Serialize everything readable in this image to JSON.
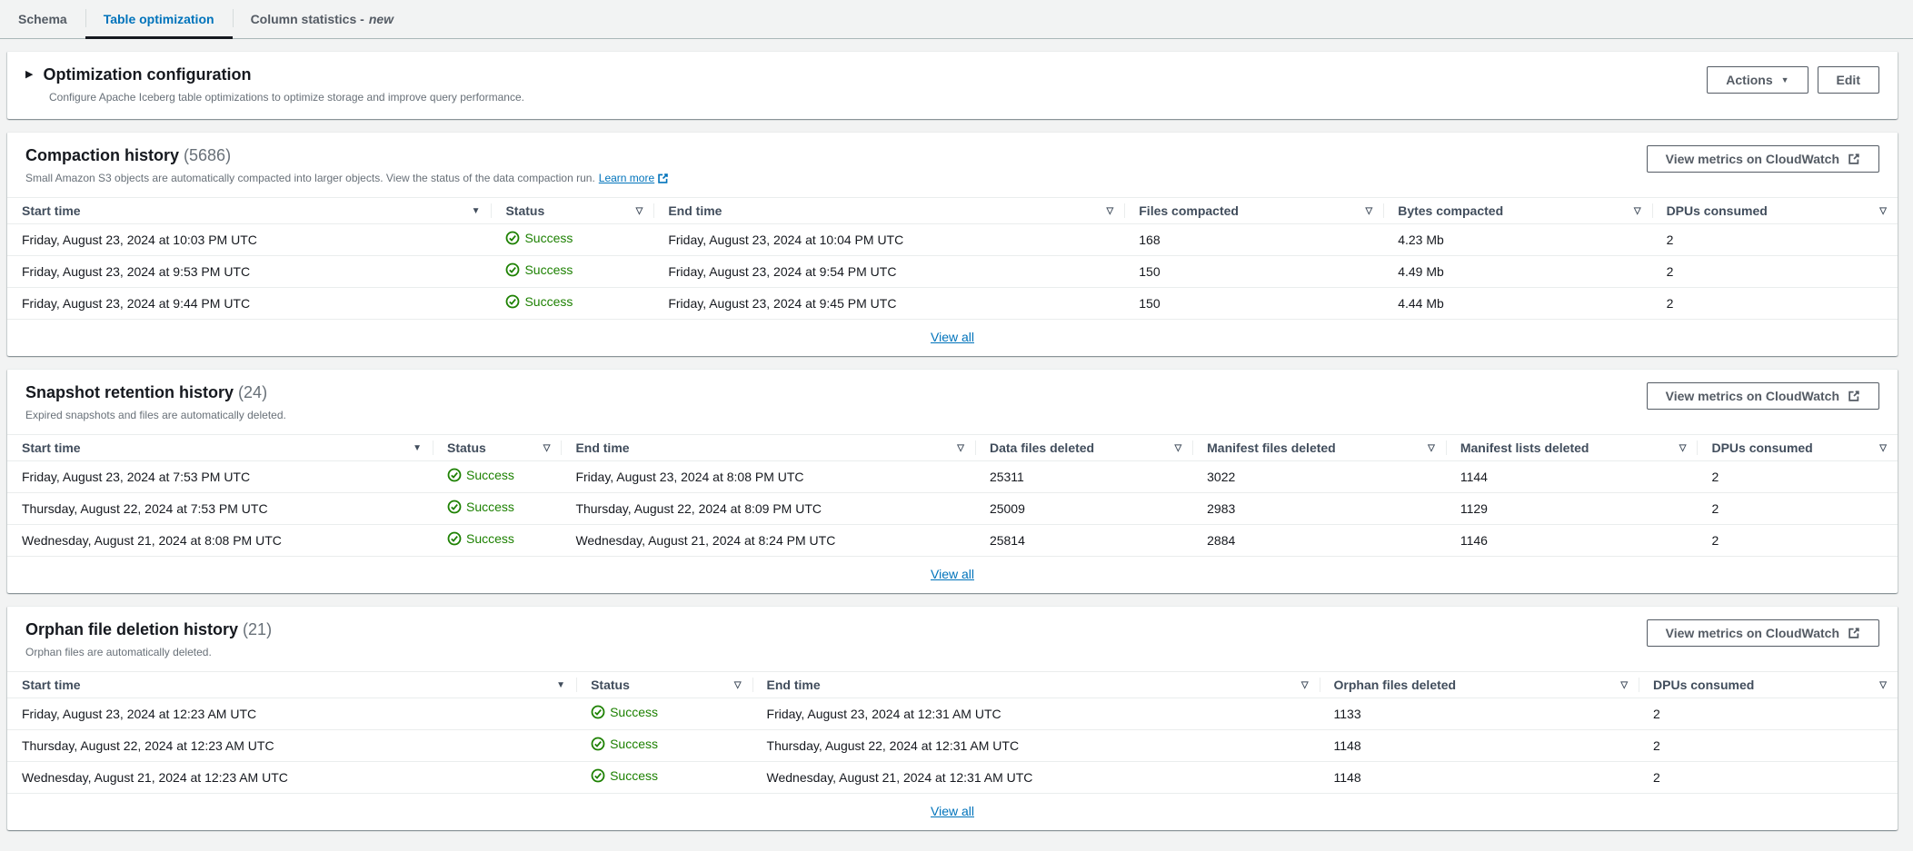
{
  "tabs": [
    {
      "label": "Schema",
      "active": false
    },
    {
      "label": "Table optimization",
      "active": true
    },
    {
      "label": "Column statistics -",
      "badge": "new",
      "active": false
    }
  ],
  "config": {
    "title": "Optimization configuration",
    "description": "Configure Apache Iceberg table optimizations to optimize storage and improve query performance.",
    "actions_label": "Actions",
    "edit_label": "Edit"
  },
  "icons": {
    "expand": "caret-right-icon",
    "actions_caret": "caret-down-icon",
    "sort_desc_glyph": "▼",
    "sortable_glyph": "▽",
    "success": "status-success-icon",
    "external_link": "external-link-icon"
  },
  "colors": {
    "accent_blue": "#0073bb",
    "success_green": "#1d8102",
    "active_tab_underline": "#16191f"
  },
  "sections": [
    {
      "title": "Compaction history",
      "count": "(5686)",
      "description": "Small Amazon S3 objects are automatically compacted into larger objects. View the status of the data compaction run.",
      "learn_more_label": "Learn more",
      "metrics_button": "View metrics on CloudWatch",
      "view_all_label": "View all",
      "columns": [
        {
          "label": "Start time",
          "sort": "desc"
        },
        {
          "label": "Status",
          "type": "status"
        },
        {
          "label": "End time"
        },
        {
          "label": "Files compacted"
        },
        {
          "label": "Bytes compacted"
        },
        {
          "label": "DPUs consumed"
        }
      ],
      "rows": [
        [
          "Friday, August 23, 2024 at 10:03 PM UTC",
          "Success",
          "Friday, August 23, 2024 at 10:04 PM UTC",
          "168",
          "4.23 Mb",
          "2"
        ],
        [
          "Friday, August 23, 2024 at 9:53 PM UTC",
          "Success",
          "Friday, August 23, 2024 at 9:54 PM UTC",
          "150",
          "4.49 Mb",
          "2"
        ],
        [
          "Friday, August 23, 2024 at 9:44 PM UTC",
          "Success",
          "Friday, August 23, 2024 at 9:45 PM UTC",
          "150",
          "4.44 Mb",
          "2"
        ]
      ]
    },
    {
      "title": "Snapshot retention history",
      "count": "(24)",
      "description": "Expired snapshots and files are automatically deleted.",
      "metrics_button": "View metrics on CloudWatch",
      "view_all_label": "View all",
      "columns": [
        {
          "label": "Start time",
          "sort": "desc"
        },
        {
          "label": "Status",
          "type": "status"
        },
        {
          "label": "End time"
        },
        {
          "label": "Data files deleted"
        },
        {
          "label": "Manifest files deleted"
        },
        {
          "label": "Manifest lists deleted"
        },
        {
          "label": "DPUs consumed"
        }
      ],
      "rows": [
        [
          "Friday, August 23, 2024 at 7:53 PM UTC",
          "Success",
          "Friday, August 23, 2024 at 8:08 PM UTC",
          "25311",
          "3022",
          "1144",
          "2"
        ],
        [
          "Thursday, August 22, 2024 at 7:53 PM UTC",
          "Success",
          "Thursday, August 22, 2024 at 8:09 PM UTC",
          "25009",
          "2983",
          "1129",
          "2"
        ],
        [
          "Wednesday, August 21, 2024 at 8:08 PM UTC",
          "Success",
          "Wednesday, August 21, 2024 at 8:24 PM UTC",
          "25814",
          "2884",
          "1146",
          "2"
        ]
      ]
    },
    {
      "title": "Orphan file deletion history",
      "count": "(21)",
      "description": "Orphan files are automatically deleted.",
      "metrics_button": "View metrics on CloudWatch",
      "view_all_label": "View all",
      "columns": [
        {
          "label": "Start time",
          "sort": "desc"
        },
        {
          "label": "Status",
          "type": "status"
        },
        {
          "label": "End time"
        },
        {
          "label": "Orphan files deleted"
        },
        {
          "label": "DPUs consumed"
        }
      ],
      "rows": [
        [
          "Friday, August 23, 2024 at 12:23 AM UTC",
          "Success",
          "Friday, August 23, 2024 at 12:31 AM UTC",
          "1133",
          "2"
        ],
        [
          "Thursday, August 22, 2024 at 12:23 AM UTC",
          "Success",
          "Thursday, August 22, 2024 at 12:31 AM UTC",
          "1148",
          "2"
        ],
        [
          "Wednesday, August 21, 2024 at 12:23 AM UTC",
          "Success",
          "Wednesday, August 21, 2024 at 12:31 AM UTC",
          "1148",
          "2"
        ]
      ]
    }
  ]
}
